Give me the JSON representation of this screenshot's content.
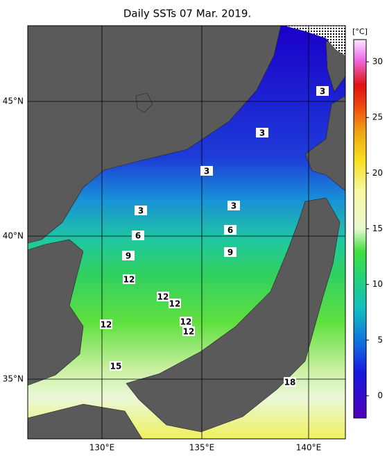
{
  "title": "Daily SSTs 07 Mar. 2019.",
  "lon_labels": [
    "130°E",
    "135°E",
    "140°E"
  ],
  "lat_labels": [
    "45°N",
    "40°N",
    "35°N"
  ],
  "colorbar": {
    "label": "[°C]",
    "range": [
      -2,
      32
    ],
    "ticks": [
      0,
      5,
      10,
      15,
      20,
      25,
      30
    ]
  },
  "contour_labels": [
    "3",
    "3",
    "3",
    "3",
    "3",
    "6",
    "6",
    "9",
    "9",
    "12",
    "12",
    "12",
    "12",
    "12",
    "12",
    "15",
    "18"
  ]
}
